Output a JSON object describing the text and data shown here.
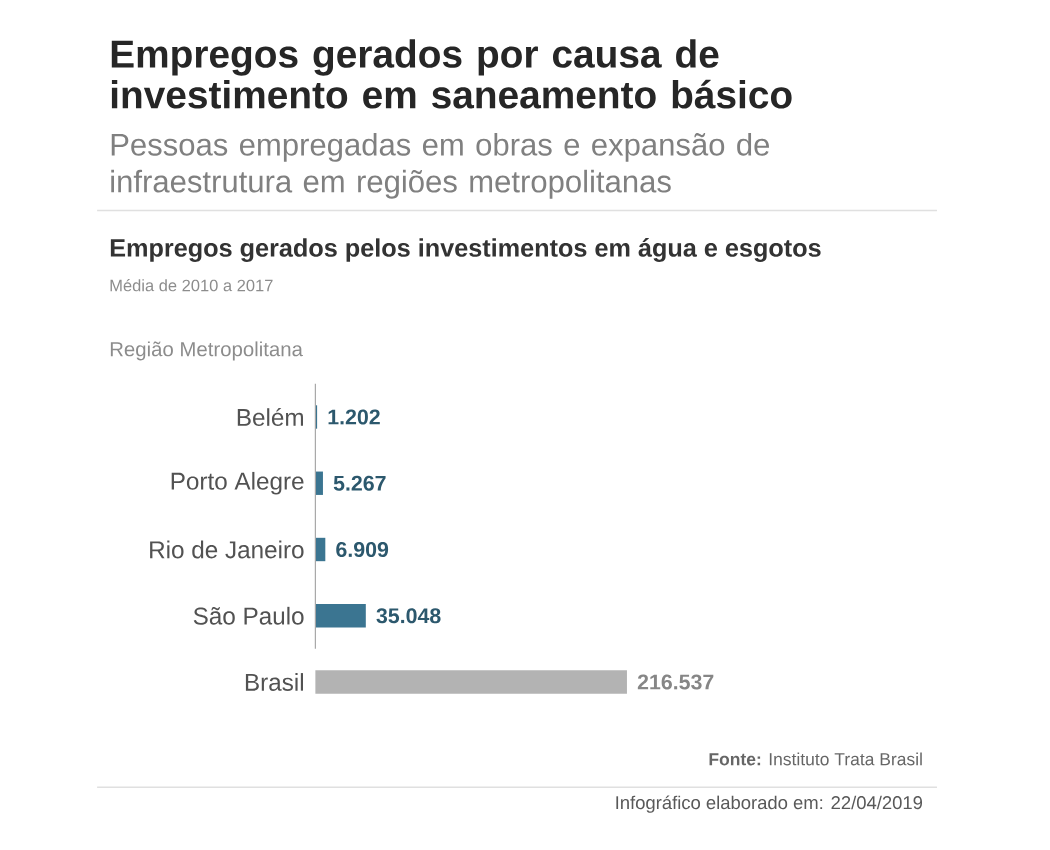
{
  "chart_data": {
    "type": "bar",
    "orientation": "horizontal",
    "title": "Empregos gerados por causa de investimento em saneamento básico",
    "subtitle": "Pessoas empregadas em obras e expansão de infraestrutura em regiões metropolitanas",
    "ylabel": "Região Metropolitana",
    "categories": [
      "Belém",
      "Porto Alegre",
      "Rio de Janeiro",
      "São Paulo",
      "Brasil"
    ],
    "values": [
      1202,
      5267,
      6909,
      35048,
      216537
    ],
    "value_labels": [
      "1.202",
      "5.267",
      "6.909",
      "35.048",
      "216.537"
    ],
    "colors": [
      "#3b7591",
      "#3b7591",
      "#3b7591",
      "#3b7591",
      "#b3b3b3"
    ],
    "annotations": [
      "Empregos gerados pelos investimentos em água e esgotos",
      "Média de 2010 a 2017",
      "**Fonte:** Instituto Trata Brasil",
      "Infográfico elaborado em: 22/04/2019"
    ]
  }
}
